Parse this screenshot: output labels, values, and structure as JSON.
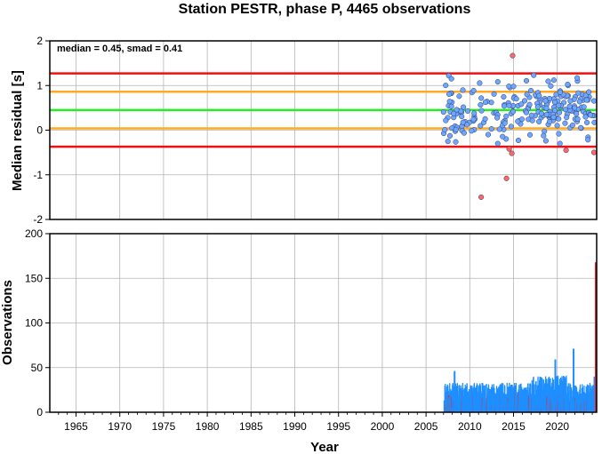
{
  "title": "Station PESTR, phase P, 4465 observations",
  "chart_data": [
    {
      "type": "scatter",
      "ylabel": "Median residual [s]",
      "annotation": "median = 0.45, smad = 0.41",
      "xlim": [
        1962,
        2024.5
      ],
      "ylim": [
        -2,
        2
      ],
      "yticks": [
        "-2",
        "-1",
        "0",
        "1",
        "2"
      ],
      "grid": true,
      "hlines": [
        {
          "y": 1.27,
          "color": "#ee1111",
          "role": "median + 2 smad"
        },
        {
          "y": 0.86,
          "color": "#ffaa22",
          "role": "median + 1 smad"
        },
        {
          "y": 0.45,
          "color": "#22ee22",
          "role": "median"
        },
        {
          "y": 0.04,
          "color": "#ffaa22",
          "role": "median - 1 smad"
        },
        {
          "y": -0.37,
          "color": "#ee1111",
          "role": "median - 2 smad"
        }
      ],
      "colors": {
        "inlier": "#6fa6ff",
        "outlier": "#ff6666"
      }
    },
    {
      "type": "bar",
      "ylabel": "Observations",
      "xlabel": "Year",
      "xlim": [
        1962,
        2024.5
      ],
      "ylim": [
        0,
        200
      ],
      "yticks": [
        "0",
        "50",
        "100",
        "150",
        "200"
      ],
      "xticks": [
        "1965",
        "1970",
        "1975",
        "1980",
        "1985",
        "1990",
        "1995",
        "2000",
        "2005",
        "2010",
        "2015",
        "2020"
      ],
      "grid": true,
      "colors": {
        "main": "#1f8fff",
        "outlier": "#ee2222"
      }
    }
  ]
}
